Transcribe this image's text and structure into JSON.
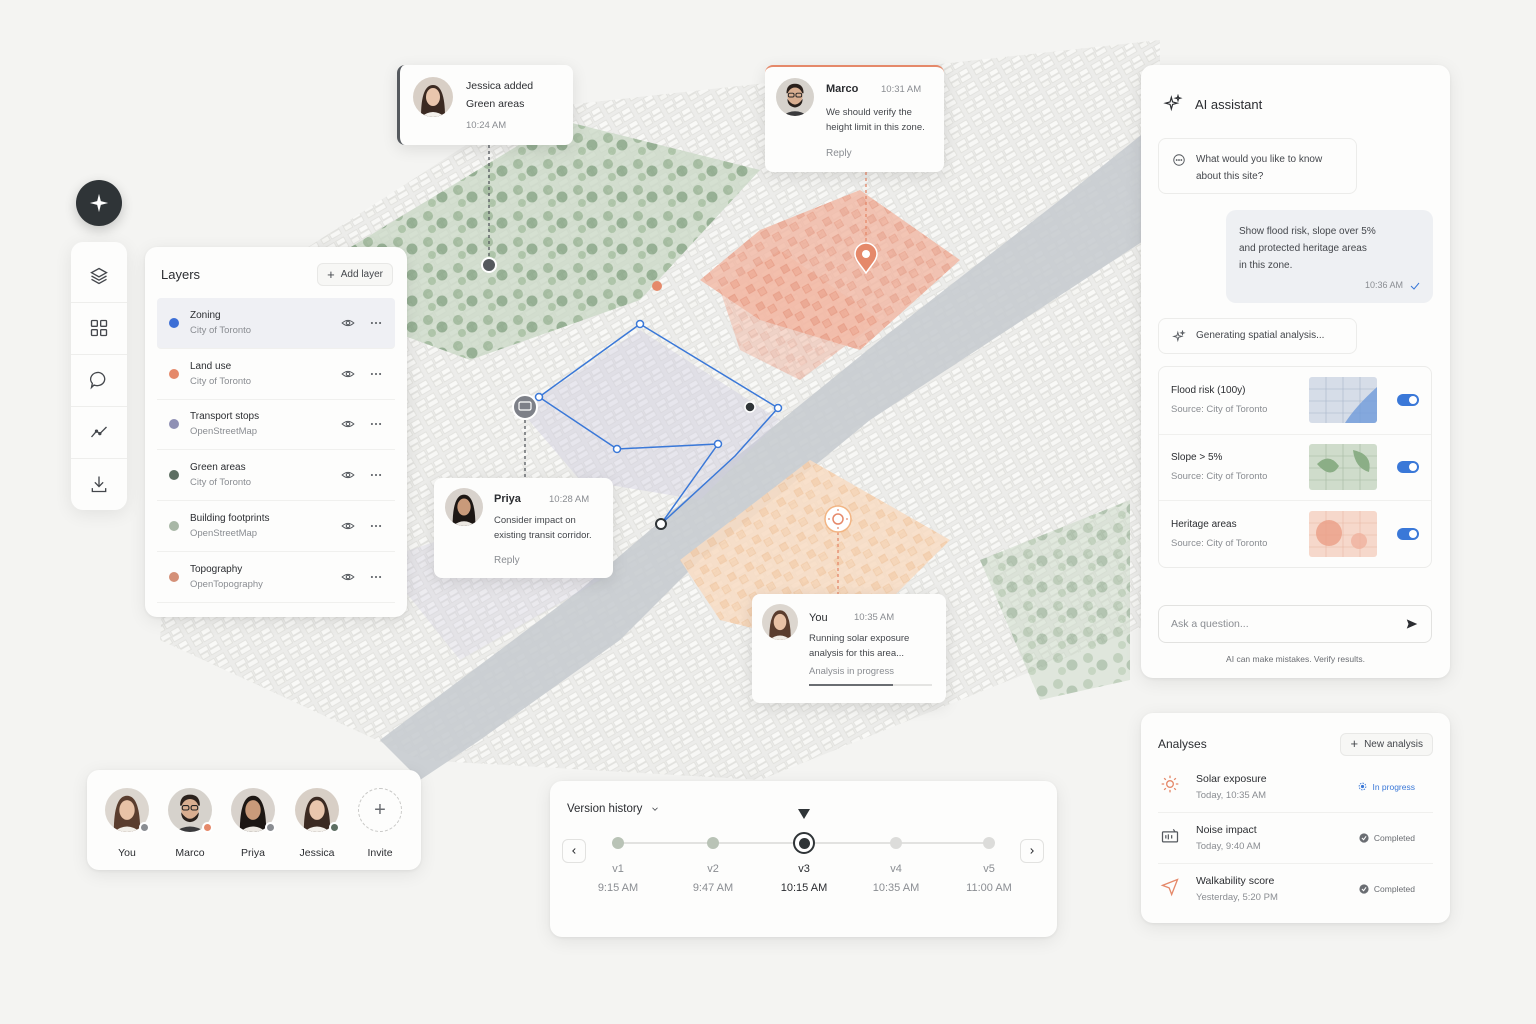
{
  "layers_panel": {
    "title": "Layers",
    "add_label": "Add layer",
    "items": [
      {
        "name": "Zoning",
        "source": "City of Toronto",
        "color": "#3d6fd6"
      },
      {
        "name": "Land use",
        "source": "City of Toronto",
        "color": "#e5896a"
      },
      {
        "name": "Transport stops",
        "source": "OpenStreetMap",
        "color": "#8f90b4"
      },
      {
        "name": "Green areas",
        "source": "City of Toronto",
        "color": "#5d6e62"
      },
      {
        "name": "Building footprints",
        "source": "OpenStreetMap",
        "color": "#a8b7a6"
      },
      {
        "name": "Topography",
        "source": "OpenTopography",
        "color": "#d49078"
      }
    ]
  },
  "comments": {
    "jessica": {
      "line1": "Jessica added",
      "line2": "Green areas",
      "time": "10:24 AM"
    },
    "marco": {
      "name": "Marco",
      "time": "10:31 AM",
      "body1": "We should verify the",
      "body2": "height limit in this zone.",
      "reply": "Reply"
    },
    "priya": {
      "name": "Priya",
      "time": "10:28 AM",
      "body1": "Consider impact on",
      "body2": "existing transit corridor.",
      "reply": "Reply"
    },
    "you": {
      "name": "You",
      "time": "10:35 AM",
      "body1": "Running solar exposure",
      "body2": "analysis for this area...",
      "status": "Analysis in progress"
    }
  },
  "ai_assistant": {
    "title": "AI assistant",
    "prompt1": "What would you like to know",
    "prompt2": "about this site?",
    "user_msg1": "Show flood risk, slope over 5%",
    "user_msg2": "and protected heritage areas",
    "user_msg3": "in this zone.",
    "user_time": "10:36 AM",
    "generating": "Generating spatial analysis...",
    "results": [
      {
        "name": "Flood risk (100y)",
        "source": "Source: City of Toronto",
        "enabled": true
      },
      {
        "name": "Slope > 5%",
        "source": "Source: City of Toronto",
        "enabled": true
      },
      {
        "name": "Heritage areas",
        "source": "Source: City of Toronto",
        "enabled": true
      }
    ],
    "input_placeholder": "Ask a question...",
    "disclaimer": "AI can make mistakes. Verify results."
  },
  "analyses": {
    "title": "Analyses",
    "new_label": "New analysis",
    "items": [
      {
        "name": "Solar exposure",
        "time": "Today, 10:35 AM",
        "status": "In progress"
      },
      {
        "name": "Noise impact",
        "time": "Today, 9:40 AM",
        "status": "Completed"
      },
      {
        "name": "Walkability score",
        "time": "Yesterday, 5:20 PM",
        "status": "Completed"
      }
    ]
  },
  "collaborators": {
    "people": [
      {
        "name": "You",
        "presence": "#8a8d92"
      },
      {
        "name": "Marco",
        "presence": "#e5896a"
      },
      {
        "name": "Priya",
        "presence": "#8a8d92"
      },
      {
        "name": "Jessica",
        "presence": "#5d6e62"
      }
    ],
    "invite_label": "Invite"
  },
  "version_history": {
    "title": "Version history",
    "versions": [
      {
        "label": "v1",
        "time": "9:15 AM"
      },
      {
        "label": "v2",
        "time": "9:47 AM"
      },
      {
        "label": "v3",
        "time": "10:15 AM",
        "current": true
      },
      {
        "label": "v4",
        "time": "10:35 AM"
      },
      {
        "label": "v5",
        "time": "11:00 AM"
      }
    ]
  },
  "colors": {
    "accent_blue": "#3a78d8",
    "heritage_red": "#e5896a",
    "solar_orange": "#f2b584",
    "green_area": "#a9c3a2"
  }
}
